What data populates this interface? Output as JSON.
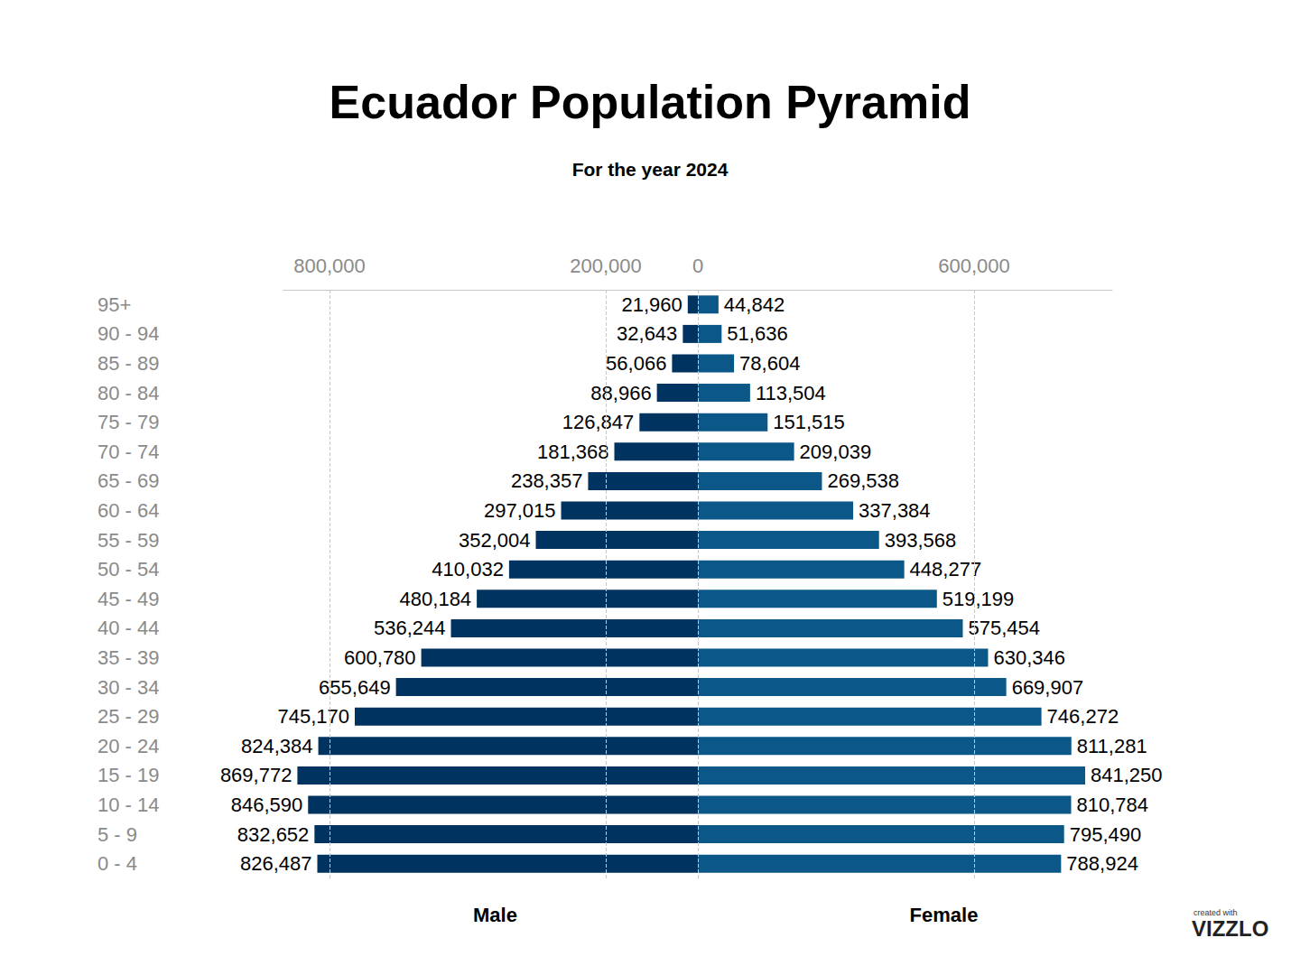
{
  "chart_data": {
    "type": "pyramid",
    "orientation": "horizontal",
    "title": "Ecuador Population Pyramid",
    "subtitle": "For the year 2024",
    "annotations": [
      "created with",
      "VIZZLO"
    ],
    "categories": [
      "95+",
      "90 - 94",
      "85 - 89",
      "80 - 84",
      "75 - 79",
      "70 - 74",
      "65 - 69",
      "60 - 64",
      "55 - 59",
      "50 - 54",
      "45 - 49",
      "40 - 44",
      "35 - 39",
      "30 - 34",
      "25 - 29",
      "20 - 24",
      "15 - 19",
      "10 - 14",
      "5 - 9",
      "0 - 4"
    ],
    "data_labels": true,
    "grid": true,
    "series": [
      {
        "name": "Male",
        "color": "#00335f",
        "values": [
          21960,
          32643,
          56066,
          88966,
          126847,
          181368,
          238357,
          297015,
          352004,
          410032,
          480184,
          536244,
          600780,
          655649,
          745170,
          824384,
          869772,
          846590,
          832652,
          826487
        ],
        "value_labels": [
          "21,960",
          "32,643",
          "56,066",
          "88,966",
          "126,847",
          "181,368",
          "238,357",
          "297,015",
          "352,004",
          "410,032",
          "480,184",
          "536,244",
          "600,780",
          "655,649",
          "745,170",
          "824,384",
          "869,772",
          "846,590",
          "832,652",
          "826,487"
        ],
        "xlim": [
          0,
          900000
        ],
        "xticks": [
          0,
          {
            "value": 200000,
            "label": "200,000"
          },
          {
            "value": 800000,
            "label": "800,000"
          }
        ]
      },
      {
        "name": "Female",
        "color": "#0b5787",
        "values": [
          44842,
          51636,
          78604,
          113504,
          151515,
          209039,
          269538,
          337384,
          393568,
          448277,
          519199,
          575454,
          630346,
          669907,
          746272,
          811281,
          841250,
          810784,
          795490,
          788924
        ],
        "value_labels": [
          "44,842",
          "51,636",
          "78,604",
          "113,504",
          "151,515",
          "209,039",
          "269,538",
          "337,384",
          "393,568",
          "448,277",
          "519,199",
          "575,454",
          "630,346",
          "669,907",
          "746,272",
          "811,281",
          "841,250",
          "810,784",
          "795,490",
          "788,924"
        ],
        "xlim": [
          0,
          900000
        ],
        "xticks": [
          {
            "value": 600000,
            "label": "600,000"
          }
        ]
      }
    ]
  }
}
